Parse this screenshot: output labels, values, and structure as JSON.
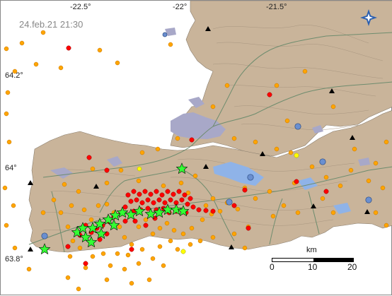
{
  "map": {
    "timestamp": "24.feb.21  21:30",
    "lon_labels": [
      "-22.5°",
      "-22°",
      "-21.5°"
    ],
    "lat_labels": [
      "64.2°",
      "64°",
      "63.8°"
    ],
    "scale": {
      "unit_label": "km",
      "tick_labels": [
        "0",
        "10",
        "20"
      ]
    },
    "colors": {
      "sea": "#ffffff",
      "land": "#c9b49a",
      "lake": "#8fb3e8",
      "urban": "#a8a8c8",
      "road": "#6e8c6e",
      "quake_recent": "#ff0000",
      "quake_older": "#ffa500",
      "quake_large": "#33ff33",
      "quake_mid": "#ffff00",
      "station_marker": "#000000"
    },
    "logo_icon": "compass-star-icon"
  }
}
